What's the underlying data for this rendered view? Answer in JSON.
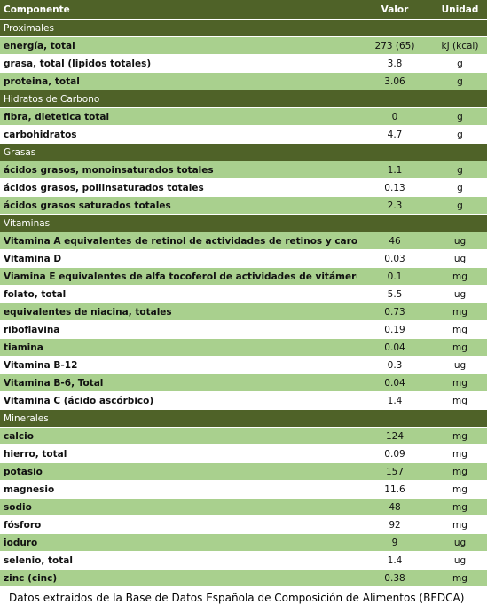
{
  "header": {
    "component": "Componente",
    "value": "Valor",
    "unit": "Unidad"
  },
  "sections": [
    {
      "title": "Proximales",
      "rows": [
        {
          "name": "energía, total",
          "value": "273 (65)",
          "unit": "kJ (kcal)"
        },
        {
          "name": "grasa, total (lipidos totales)",
          "value": "3.8",
          "unit": "g"
        },
        {
          "name": "proteina, total",
          "value": "3.06",
          "unit": "g"
        }
      ]
    },
    {
      "title": "Hidratos de Carbono",
      "rows": [
        {
          "name": "fibra, dietetica total",
          "value": "0",
          "unit": "g"
        },
        {
          "name": "carbohidratos",
          "value": "4.7",
          "unit": "g"
        }
      ]
    },
    {
      "title": "Grasas",
      "rows": [
        {
          "name": "ácidos grasos, monoinsaturados totales",
          "value": "1.1",
          "unit": "g"
        },
        {
          "name": "ácidos grasos, poliinsaturados totales",
          "value": "0.13",
          "unit": "g"
        },
        {
          "name": "ácidos grasos saturados totales",
          "value": "2.3",
          "unit": "g"
        }
      ]
    },
    {
      "title": "Vitaminas",
      "rows": [
        {
          "name": "Vitamina A equivalentes de retinol de actividades de retinos y carotenoides",
          "value": "46",
          "unit": "ug"
        },
        {
          "name": "Vitamina D",
          "value": "0.03",
          "unit": "ug"
        },
        {
          "name": "Viamina E equivalentes de alfa tocoferol de actividades de vitámeros E",
          "value": "0.1",
          "unit": "mg"
        },
        {
          "name": "folato, total",
          "value": "5.5",
          "unit": "ug"
        },
        {
          "name": "equivalentes de niacina, totales",
          "value": "0.73",
          "unit": "mg"
        },
        {
          "name": "riboflavina",
          "value": "0.19",
          "unit": "mg"
        },
        {
          "name": "tiamina",
          "value": "0.04",
          "unit": "mg"
        },
        {
          "name": "Vitamina B-12",
          "value": "0.3",
          "unit": "ug"
        },
        {
          "name": "Vitamina B-6, Total",
          "value": "0.04",
          "unit": "mg"
        },
        {
          "name": "Vitamina C (ácido ascórbico)",
          "value": "1.4",
          "unit": "mg"
        }
      ]
    },
    {
      "title": "Minerales",
      "rows": [
        {
          "name": "calcio",
          "value": "124",
          "unit": "mg"
        },
        {
          "name": "hierro, total",
          "value": "0.09",
          "unit": "mg"
        },
        {
          "name": "potasio",
          "value": "157",
          "unit": "mg"
        },
        {
          "name": "magnesio",
          "value": "11.6",
          "unit": "mg"
        },
        {
          "name": "sodio",
          "value": "48",
          "unit": "mg"
        },
        {
          "name": "fósforo",
          "value": "92",
          "unit": "mg"
        },
        {
          "name": "ioduro",
          "value": "9",
          "unit": "ug"
        },
        {
          "name": "selenio, total",
          "value": "1.4",
          "unit": "ug"
        },
        {
          "name": "zinc (cinc)",
          "value": "0.38",
          "unit": "mg"
        }
      ]
    }
  ],
  "source_note": "Datos extraidos de la Base de Datos Española de Composición de Alimentos (BEDCA)",
  "colors": {
    "header_bg": "#4f6228",
    "header_text": "#ffffff",
    "row_green": "#a9d08e",
    "row_white": "#ffffff"
  }
}
